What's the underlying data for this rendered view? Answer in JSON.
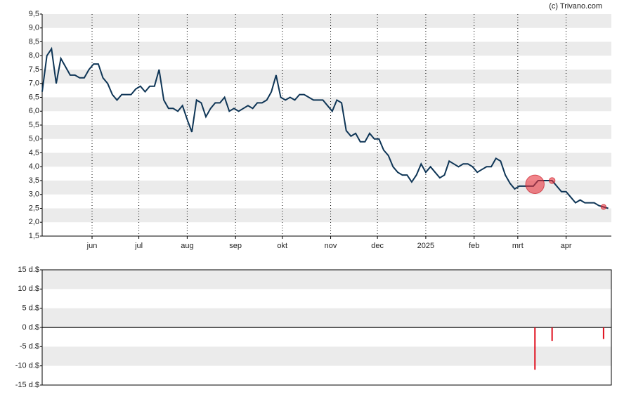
{
  "chart_data": [
    {
      "type": "line",
      "credit": "(c) Trivano.com",
      "x": [
        0,
        3,
        6,
        9,
        12,
        15,
        18,
        21,
        24,
        27,
        30,
        33,
        36,
        39,
        42,
        45,
        48,
        51,
        54,
        57,
        60,
        63,
        66,
        69,
        72,
        75,
        78,
        81,
        84,
        87,
        90,
        93,
        96,
        99,
        102,
        105,
        108,
        111,
        114,
        117,
        120,
        123,
        126,
        129,
        132,
        135,
        138,
        141,
        144,
        147,
        150,
        153,
        156,
        159,
        162,
        165,
        168,
        171,
        174,
        177,
        180,
        183,
        186,
        189,
        192,
        195,
        198,
        201,
        204,
        207,
        210,
        213,
        216,
        219,
        222,
        225,
        228,
        231,
        234,
        237,
        240,
        243,
        246,
        249,
        252,
        255,
        258,
        261,
        264,
        267,
        270,
        273,
        276,
        279,
        282,
        285,
        288,
        291,
        294,
        297,
        300,
        303,
        306,
        309,
        312,
        315,
        318,
        321,
        324,
        327,
        330,
        333,
        336,
        339,
        342,
        345,
        348,
        351,
        354,
        357,
        360,
        363
      ],
      "series": [
        {
          "name": "koers",
          "color": "#0e3556",
          "values": [
            6.7,
            8.0,
            8.25,
            7.0,
            7.9,
            7.6,
            7.3,
            7.3,
            7.2,
            7.2,
            7.5,
            7.7,
            7.7,
            7.2,
            7.0,
            6.6,
            6.4,
            6.6,
            6.6,
            6.6,
            6.8,
            6.9,
            6.7,
            6.9,
            6.9,
            7.5,
            6.4,
            6.1,
            6.1,
            6.0,
            6.2,
            5.7,
            5.25,
            6.4,
            6.3,
            5.8,
            6.1,
            6.3,
            6.3,
            6.5,
            6.0,
            6.1,
            6.0,
            6.1,
            6.2,
            6.1,
            6.3,
            6.3,
            6.4,
            6.7,
            7.3,
            6.5,
            6.4,
            6.5,
            6.4,
            6.6,
            6.6,
            6.5,
            6.4,
            6.4,
            6.4,
            6.2,
            6.0,
            6.4,
            6.3,
            5.3,
            5.1,
            5.2,
            4.9,
            4.9,
            5.2,
            5.0,
            5.0,
            4.6,
            4.4,
            4.0,
            3.8,
            3.7,
            3.7,
            3.45,
            3.7,
            4.1,
            3.8,
            4.0,
            3.8,
            3.6,
            3.7,
            4.2,
            4.1,
            4.0,
            4.1,
            4.1,
            4.0,
            3.8,
            3.9,
            4.0,
            4.0,
            4.3,
            4.2,
            3.7,
            3.4,
            3.2,
            3.3,
            3.3,
            3.3,
            3.3,
            3.5,
            3.5,
            3.5,
            3.5,
            3.3,
            3.1,
            3.1,
            2.9,
            2.7,
            2.8,
            2.7,
            2.7,
            2.7,
            2.6,
            2.55,
            2.5
          ]
        }
      ],
      "xlim": [
        0,
        365
      ],
      "xticks": [
        {
          "value": 32,
          "label": "jun"
        },
        {
          "value": 62,
          "label": "jul"
        },
        {
          "value": 93,
          "label": "aug"
        },
        {
          "value": 124,
          "label": "sep"
        },
        {
          "value": 154,
          "label": "okt"
        },
        {
          "value": 185,
          "label": "nov"
        },
        {
          "value": 215,
          "label": "dec"
        },
        {
          "value": 246,
          "label": "2025"
        },
        {
          "value": 277,
          "label": "feb"
        },
        {
          "value": 305,
          "label": "mrt"
        },
        {
          "value": 336,
          "label": "apr"
        }
      ],
      "ylim": [
        1.5,
        9.5
      ],
      "yticks": [
        {
          "value": 1.5,
          "label": "1,5"
        },
        {
          "value": 2,
          "label": "2,0"
        },
        {
          "value": 2.5,
          "label": "2,5"
        },
        {
          "value": 3,
          "label": "3,0"
        },
        {
          "value": 3.5,
          "label": "3,5"
        },
        {
          "value": 4,
          "label": "4,0"
        },
        {
          "value": 4.5,
          "label": "4,5"
        },
        {
          "value": 5,
          "label": "5,0"
        },
        {
          "value": 5.5,
          "label": "5,5"
        },
        {
          "value": 6,
          "label": "6,0"
        },
        {
          "value": 6.5,
          "label": "6,5"
        },
        {
          "value": 7,
          "label": "7,0"
        },
        {
          "value": 7.5,
          "label": "7,5"
        },
        {
          "value": 8,
          "label": "8,0"
        },
        {
          "value": 8.5,
          "label": "8,5"
        },
        {
          "value": 9,
          "label": "9,0"
        },
        {
          "value": 9.5,
          "label": "9,5"
        }
      ]
    },
    {
      "type": "bar",
      "x": [
        316,
        327,
        360
      ],
      "series": [
        {
          "name": "insider",
          "color": "#e0101e",
          "values": [
            -11,
            -3.5,
            -3
          ]
        }
      ],
      "xlim": [
        0,
        365
      ],
      "ylim": [
        -15,
        15
      ],
      "yticks": [
        {
          "value": -15,
          "label": "-15 d.$"
        },
        {
          "value": -10,
          "label": "-10 d.$"
        },
        {
          "value": -5,
          "label": "-5 d.$"
        },
        {
          "value": 0,
          "label": "0 d.$"
        },
        {
          "value": 5,
          "label": "5 d.$"
        },
        {
          "value": 10,
          "label": "10 d.$"
        },
        {
          "value": 15,
          "label": "15 d.$"
        }
      ]
    }
  ]
}
